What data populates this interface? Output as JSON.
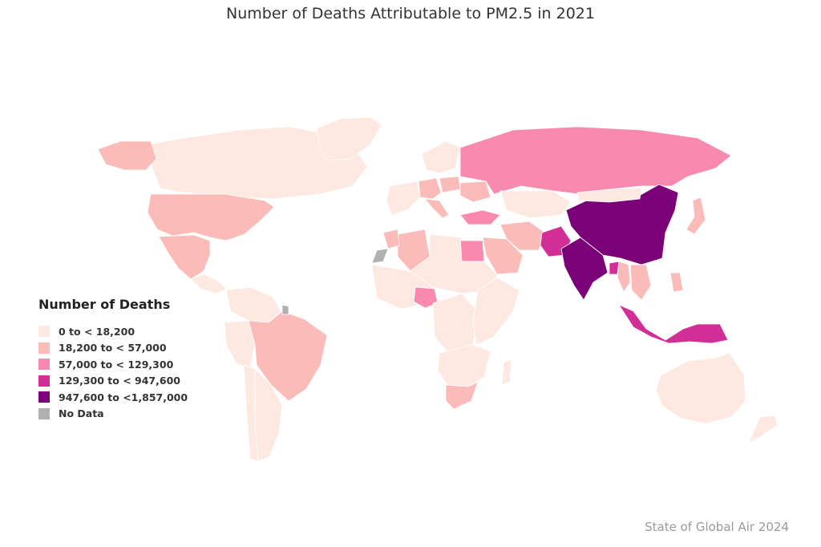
{
  "title": "Number of Deaths Attributable to PM2.5 in 2021",
  "legend": {
    "title": "Number of Deaths",
    "items": [
      {
        "label": "0 to < 18,200",
        "color": "#fde9e1"
      },
      {
        "label": "18,200 to < 57,000",
        "color": "#fbbbb8"
      },
      {
        "label": "57,000 to < 129,300",
        "color": "#f78aae"
      },
      {
        "label": "129,300 to < 947,600",
        "color": "#d12e96"
      },
      {
        "label": "947,600 to <1,857,000",
        "color": "#7a0177"
      },
      {
        "label": "No Data",
        "color": "#b0b0b0"
      }
    ]
  },
  "source": "State of Global Air 2024",
  "regions": [
    {
      "name": "Canada",
      "category": 0
    },
    {
      "name": "Alaska",
      "category": 1
    },
    {
      "name": "Greenland",
      "category": 0
    },
    {
      "name": "United States",
      "category": 1
    },
    {
      "name": "Mexico",
      "category": 1
    },
    {
      "name": "Central America",
      "category": 0
    },
    {
      "name": "Colombia",
      "category": 0
    },
    {
      "name": "Peru",
      "category": 0
    },
    {
      "name": "Brazil",
      "category": 1
    },
    {
      "name": "Argentina",
      "category": 0
    },
    {
      "name": "Chile",
      "category": 0
    },
    {
      "name": "Western Europe",
      "category": 0
    },
    {
      "name": "Germany",
      "category": 1
    },
    {
      "name": "Italy",
      "category": 1
    },
    {
      "name": "Poland",
      "category": 1
    },
    {
      "name": "Ukraine",
      "category": 1
    },
    {
      "name": "Scandinavia",
      "category": 0
    },
    {
      "name": "Russia",
      "category": 2
    },
    {
      "name": "Turkey",
      "category": 2
    },
    {
      "name": "Kazakhstan",
      "category": 0
    },
    {
      "name": "Iran",
      "category": 1
    },
    {
      "name": "Saudi Arabia",
      "category": 1
    },
    {
      "name": "Egypt",
      "category": 2
    },
    {
      "name": "Algeria",
      "category": 1
    },
    {
      "name": "Morocco",
      "category": 1
    },
    {
      "name": "Western Sahara",
      "category": 5
    },
    {
      "name": "North Africa",
      "category": 0
    },
    {
      "name": "West Africa",
      "category": 0
    },
    {
      "name": "Nigeria",
      "category": 2
    },
    {
      "name": "Central Africa",
      "category": 0
    },
    {
      "name": "East Africa",
      "category": 0
    },
    {
      "name": "Southern Africa",
      "category": 0
    },
    {
      "name": "South Africa",
      "category": 1
    },
    {
      "name": "Madagascar",
      "category": 0
    },
    {
      "name": "Pakistan",
      "category": 3
    },
    {
      "name": "India",
      "category": 4
    },
    {
      "name": "China",
      "category": 4
    },
    {
      "name": "Mongolia",
      "category": 0
    },
    {
      "name": "Bangladesh",
      "category": 3
    },
    {
      "name": "Myanmar",
      "category": 1
    },
    {
      "name": "Southeast Asia",
      "category": 1
    },
    {
      "name": "Japan",
      "category": 1
    },
    {
      "name": "Philippines",
      "category": 1
    },
    {
      "name": "Indonesia",
      "category": 3
    },
    {
      "name": "Australia",
      "category": 0
    },
    {
      "name": "New Zealand",
      "category": 0
    },
    {
      "name": "French Guiana",
      "category": 5
    }
  ]
}
